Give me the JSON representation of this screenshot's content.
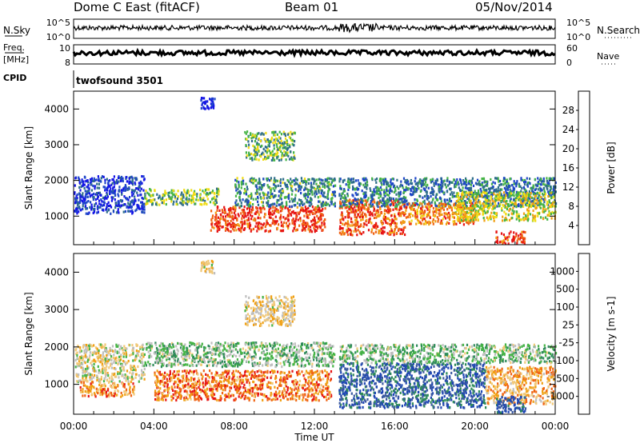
{
  "header": {
    "station": "Dome C East (fitACF)",
    "beam": "Beam 01",
    "date": "05/Nov/2014"
  },
  "chart_data": [
    {
      "type": "line",
      "name": "noise-panel",
      "left_label": "N.Sky",
      "right_label": "N.Search",
      "left_ticks": [
        "10^5",
        "10^0"
      ],
      "right_ticks": [
        "10^5",
        "10^0"
      ],
      "baseline_fraction": 0.55,
      "noise_amplitude": 0.25,
      "color": "#000000"
    },
    {
      "type": "line",
      "name": "freq-panel",
      "left_label": "Freq.",
      "left_unit": "[MHz]",
      "right_label": "Nave",
      "left_ticks": [
        "10",
        "8"
      ],
      "right_ticks": [
        "60",
        "0"
      ],
      "level_fraction": 0.58,
      "color": "#000000"
    },
    {
      "type": "table",
      "name": "cpid-panel",
      "label": "CPID",
      "entries": [
        {
          "time_hr": 0,
          "text": "twofsound 3501"
        }
      ]
    },
    {
      "type": "heatmap",
      "name": "power-panel",
      "ylabel": "Slant Range [km]",
      "y_ticks": [
        1000,
        2000,
        3000,
        4000
      ],
      "ylim": [
        200,
        4500
      ],
      "xlim": [
        0,
        24
      ],
      "colorbar": {
        "label": "Power [dB]",
        "tick_labels": [
          "4",
          "8",
          "12",
          "16",
          "20",
          "24",
          "28"
        ],
        "colors": [
          "#1414e6",
          "#1e46c8",
          "#2e6e8a",
          "#46b446",
          "#f0dc14",
          "#f0a014",
          "#f06414",
          "#e61414"
        ],
        "range": [
          0,
          30
        ]
      },
      "bands": [
        {
          "t0": 0.0,
          "t1": 3.5,
          "r0": 1100,
          "r1": 2150,
          "level": 0.15
        },
        {
          "t0": 3.5,
          "t1": 7.2,
          "r0": 1350,
          "r1": 1800,
          "level": 0.45
        },
        {
          "t0": 6.8,
          "t1": 12.5,
          "r0": 600,
          "r1": 1300,
          "level": 0.9
        },
        {
          "t0": 8.0,
          "t1": 13.0,
          "r0": 1300,
          "r1": 2100,
          "level": 0.35
        },
        {
          "t0": 13.2,
          "t1": 16.5,
          "r0": 500,
          "r1": 1500,
          "level": 0.85
        },
        {
          "t0": 13.2,
          "t1": 24.0,
          "r0": 1300,
          "r1": 2100,
          "level": 0.3
        },
        {
          "t0": 16.5,
          "t1": 20.0,
          "r0": 800,
          "r1": 1400,
          "level": 0.75
        },
        {
          "t0": 19.0,
          "t1": 24.0,
          "r0": 900,
          "r1": 1700,
          "level": 0.55
        },
        {
          "t0": 21.0,
          "t1": 22.5,
          "r0": 250,
          "r1": 600,
          "level": 0.9
        },
        {
          "t0": 6.3,
          "t1": 7.0,
          "r0": 4000,
          "r1": 4350,
          "level": 0.05
        },
        {
          "t0": 8.5,
          "t1": 11.0,
          "r0": 2600,
          "r1": 3400,
          "level": 0.45
        }
      ]
    },
    {
      "type": "heatmap",
      "name": "velocity-panel",
      "ylabel": "Slant Range [km]",
      "xlabel": "Time UT",
      "x_ticks": [
        "00:00",
        "04:00",
        "08:00",
        "12:00",
        "16:00",
        "20:00",
        "00:00"
      ],
      "x_tick_hours": [
        0,
        4,
        8,
        12,
        16,
        20,
        24
      ],
      "y_ticks": [
        1000,
        2000,
        3000,
        4000
      ],
      "ylim": [
        200,
        4500
      ],
      "xlim": [
        0,
        24
      ],
      "colorbar": {
        "label": "Velocity [m s-1]",
        "tick_labels": [
          "1000",
          "500",
          "100",
          "25",
          "-25",
          "-100",
          "-500",
          "-1000"
        ],
        "colors": [
          "#1e46b4",
          "#3c5aa0",
          "#2e8a5a",
          "#46b446",
          "#bebebe",
          "#f0c878",
          "#f0a014",
          "#f06414",
          "#e61414"
        ],
        "range": [
          -1000,
          1000
        ]
      },
      "bands": [
        {
          "t0": 0.0,
          "t1": 3.5,
          "r0": 1100,
          "r1": 2100,
          "level": 0.55
        },
        {
          "t0": 0.3,
          "t1": 3.0,
          "r0": 700,
          "r1": 1100,
          "level": 0.75
        },
        {
          "t0": 3.5,
          "t1": 13.0,
          "r0": 1500,
          "r1": 2150,
          "level": 0.42
        },
        {
          "t0": 4.0,
          "t1": 12.8,
          "r0": 600,
          "r1": 1400,
          "level": 0.8
        },
        {
          "t0": 13.2,
          "t1": 20.5,
          "r0": 400,
          "r1": 1600,
          "level": 0.15
        },
        {
          "t0": 13.2,
          "t1": 24.0,
          "r0": 1600,
          "r1": 2100,
          "level": 0.42
        },
        {
          "t0": 20.5,
          "t1": 24.0,
          "r0": 500,
          "r1": 1500,
          "level": 0.7
        },
        {
          "t0": 21.0,
          "t1": 22.5,
          "r0": 250,
          "r1": 700,
          "level": 0.15
        },
        {
          "t0": 6.3,
          "t1": 7.0,
          "r0": 4000,
          "r1": 4350,
          "level": 0.6
        },
        {
          "t0": 8.5,
          "t1": 11.0,
          "r0": 2600,
          "r1": 3400,
          "level": 0.6
        }
      ]
    }
  ]
}
